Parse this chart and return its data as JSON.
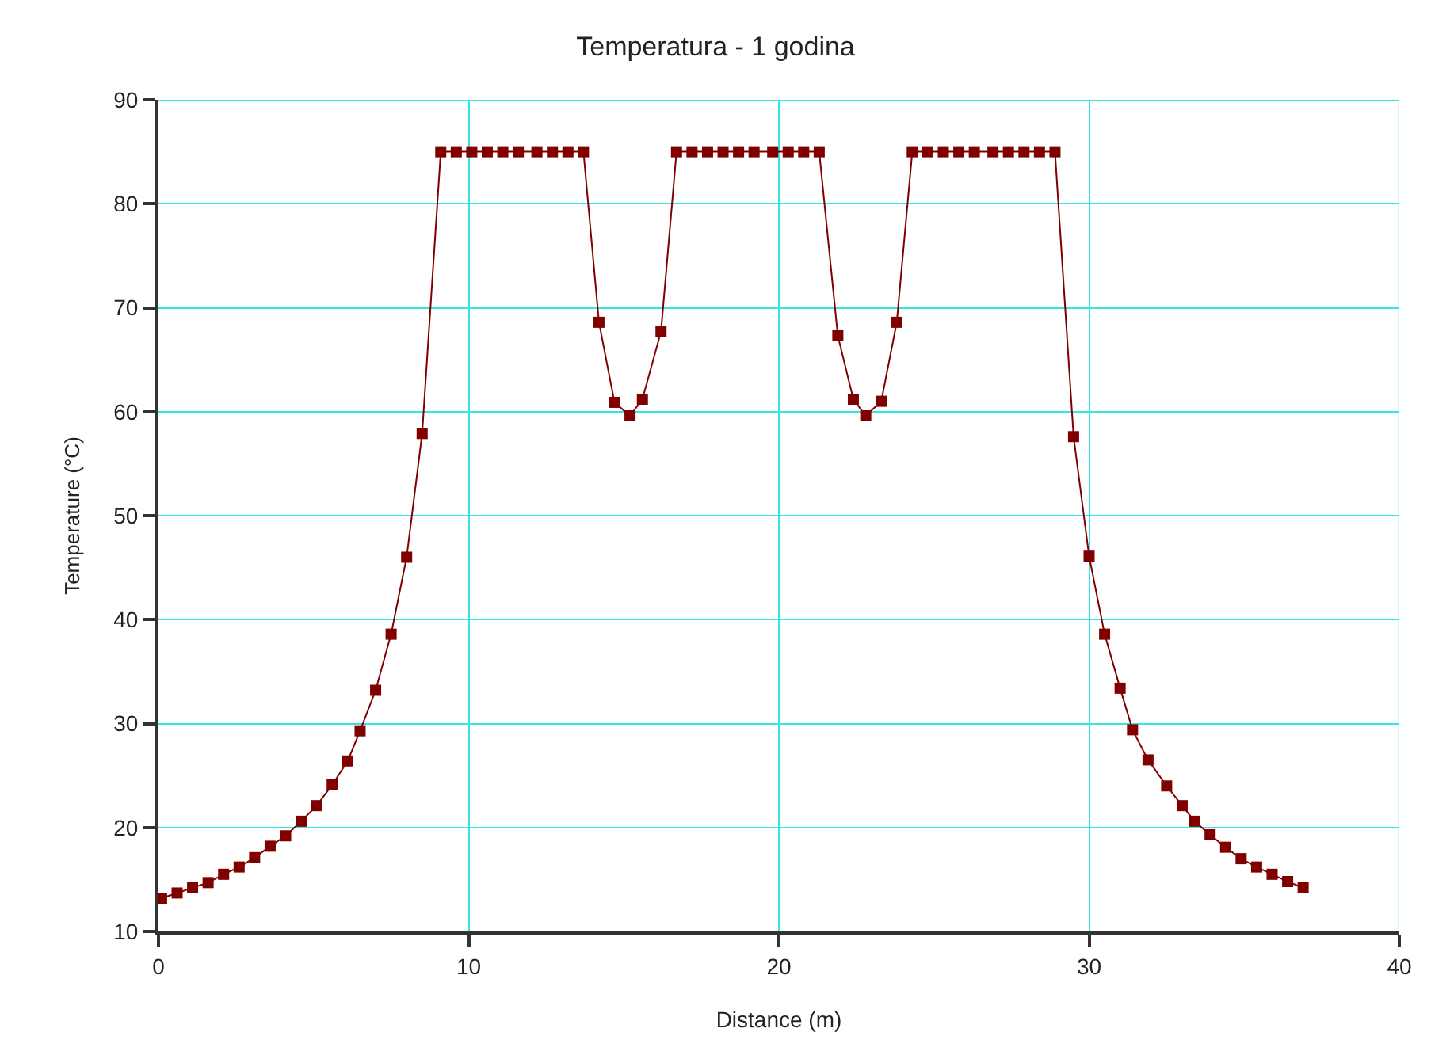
{
  "chart_data": {
    "type": "line",
    "title": "Temperatura - 1 godina",
    "xlabel": "Distance (m)",
    "ylabel": "Temperature (°C)",
    "xlim": [
      0,
      40
    ],
    "xticks": [
      0,
      10,
      20,
      30,
      40
    ],
    "ylim": [
      10,
      90
    ],
    "yticks": [
      10,
      20,
      30,
      40,
      50,
      60,
      70,
      80,
      90
    ],
    "grid": true,
    "marker": "square",
    "line_style": "solid",
    "series": [
      {
        "color": "#800000",
        "x": [
          0.1,
          0.6,
          1.1,
          1.6,
          2.1,
          2.6,
          3.1,
          3.6,
          4.1,
          4.6,
          5.1,
          5.6,
          6.1,
          6.5,
          7.0,
          7.5,
          8.0,
          8.5,
          9.1,
          9.6,
          10.1,
          10.6,
          11.1,
          11.6,
          12.2,
          12.7,
          13.2,
          13.7,
          14.2,
          14.7,
          15.2,
          15.6,
          16.2,
          16.7,
          17.2,
          17.7,
          18.2,
          18.7,
          19.2,
          19.8,
          20.3,
          20.8,
          21.3,
          21.9,
          22.4,
          22.8,
          23.3,
          23.8,
          24.3,
          24.8,
          25.3,
          25.8,
          26.3,
          26.9,
          27.4,
          27.9,
          28.4,
          28.9,
          29.5,
          30.0,
          30.5,
          31.0,
          31.4,
          31.9,
          32.5,
          33.0,
          33.4,
          33.9,
          34.4,
          34.9,
          35.4,
          35.9,
          36.4,
          36.9
        ],
        "values": [
          13.2,
          13.7,
          14.2,
          14.7,
          15.5,
          16.2,
          17.1,
          18.2,
          19.2,
          20.6,
          22.1,
          24.1,
          26.4,
          29.3,
          33.2,
          38.6,
          46.0,
          57.9,
          85,
          85,
          85,
          85,
          85,
          85,
          85,
          85,
          85,
          85,
          68.6,
          60.9,
          59.6,
          61.2,
          67.7,
          85,
          85,
          85,
          85,
          85,
          85,
          85,
          85,
          85,
          85,
          67.3,
          61.2,
          59.6,
          61.0,
          68.6,
          85,
          85,
          85,
          85,
          85,
          85,
          85,
          85,
          85,
          85,
          57.6,
          46.1,
          38.6,
          33.4,
          29.4,
          26.5,
          24.0,
          22.1,
          20.6,
          19.3,
          18.1,
          17.0,
          16.2,
          15.5,
          14.8,
          14.2
        ]
      }
    ]
  }
}
